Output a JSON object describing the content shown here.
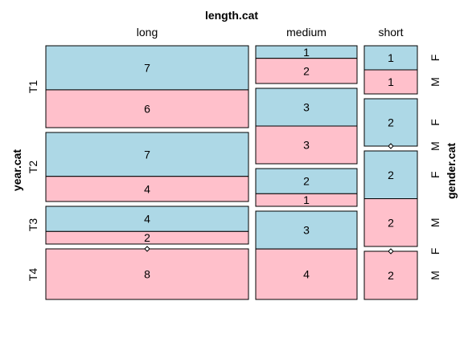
{
  "chart_data": {
    "type": "mosaic",
    "title": "",
    "col_variable": "length.cat",
    "row_variable": "year.cat",
    "fill_variable": "gender.cat",
    "columns": [
      "long",
      "medium",
      "short"
    ],
    "rows": [
      "T1",
      "T2",
      "T3",
      "T4"
    ],
    "genders": [
      "F",
      "M"
    ],
    "colors": {
      "F": "#add8e6",
      "M": "#ffc0cb"
    },
    "counts": {
      "long": {
        "T1": {
          "F": 7,
          "M": 6
        },
        "T2": {
          "F": 7,
          "M": 4
        },
        "T3": {
          "F": 4,
          "M": 2
        },
        "T4": {
          "F": 0,
          "M": 8
        }
      },
      "medium": {
        "T1": {
          "F": 1,
          "M": 2
        },
        "T2": {
          "F": 3,
          "M": 3
        },
        "T3": {
          "F": 2,
          "M": 1
        },
        "T4": {
          "F": 3,
          "M": 4
        }
      },
      "short": {
        "T1": {
          "F": 1,
          "M": 1
        },
        "T2": {
          "F": 2,
          "M": 0
        },
        "T3": {
          "F": 2,
          "M": 2
        },
        "T4": {
          "F": 0,
          "M": 2
        }
      }
    }
  }
}
